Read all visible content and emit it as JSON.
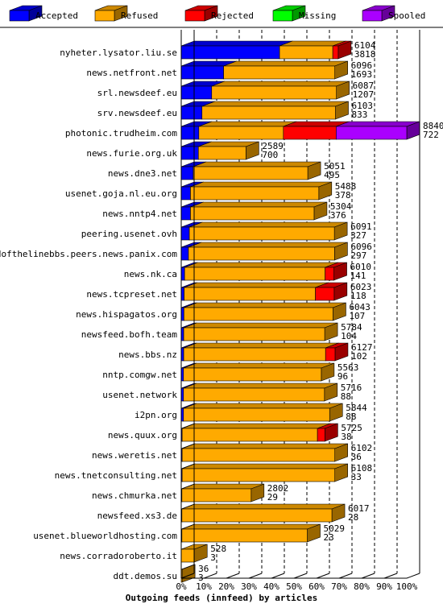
{
  "chart_data": {
    "type": "bar",
    "orientation": "horizontal",
    "stacked": true,
    "xlabel": "Outgoing feeds (innfeed) by articles",
    "xlim": [
      0,
      100
    ],
    "x_ticks": [
      "0%",
      "10%",
      "20%",
      "30%",
      "40%",
      "50%",
      "60%",
      "70%",
      "80%",
      "90%",
      "100%"
    ],
    "grid": "vertical-dashed",
    "legend_position": "top",
    "series": [
      {
        "name": "Accepted",
        "color": "#0000ff"
      },
      {
        "name": "Refused",
        "color": "#ffaa00"
      },
      {
        "name": "Rejected",
        "color": "#ff0000"
      },
      {
        "name": "Missing",
        "color": "#00ff00"
      },
      {
        "name": "Spooled",
        "color": "#aa00ff"
      }
    ],
    "rows": [
      {
        "site": "nyheter.lysator.liu.se",
        "offered": "6104",
        "accepted": "3818",
        "pct": [
          43.6,
          23.6,
          2.4,
          0,
          0
        ]
      },
      {
        "site": "news.netfront.net",
        "offered": "6096",
        "accepted": "1693",
        "pct": [
          18.8,
          49.3,
          0,
          0,
          0
        ]
      },
      {
        "site": "srl.newsdeef.eu",
        "offered": "6087",
        "accepted": "1207",
        "pct": [
          13.5,
          55.3,
          0,
          0,
          0
        ]
      },
      {
        "site": "srv.newsdeef.eu",
        "offered": "6103",
        "accepted": "833",
        "pct": [
          9.2,
          59.2,
          0,
          0,
          0
        ]
      },
      {
        "site": "photonic.trudheim.com",
        "offered": "8840",
        "accepted": "722",
        "pct": [
          7.8,
          37.5,
          23.4,
          0,
          31.3
        ]
      },
      {
        "site": "news.furie.org.uk",
        "offered": "2589",
        "accepted": "700",
        "pct": [
          7.6,
          21.1,
          0,
          0,
          0
        ]
      },
      {
        "site": "news.dne3.net",
        "offered": "5051",
        "accepted": "495",
        "pct": [
          5.3,
          50.8,
          0,
          0,
          0
        ]
      },
      {
        "site": "usenet.goja.nl.eu.org",
        "offered": "5488",
        "accepted": "378",
        "pct": [
          4.1,
          56.9,
          0,
          0,
          0
        ]
      },
      {
        "site": "news.nntp4.net",
        "offered": "5304",
        "accepted": "376",
        "pct": [
          4.1,
          54.8,
          0,
          0,
          0
        ]
      },
      {
        "site": "peering.usenet.ovh",
        "offered": "6091",
        "accepted": "327",
        "pct": [
          3.6,
          64.3,
          0,
          0,
          0
        ]
      },
      {
        "site": "endofthelinebbs.peers.news.panix.com",
        "offered": "6096",
        "accepted": "297",
        "pct": [
          3.2,
          64.8,
          0,
          0,
          0
        ]
      },
      {
        "site": "news.nk.ca",
        "offered": "6010",
        "accepted": "141",
        "pct": [
          1.5,
          62.3,
          3.9,
          0,
          0
        ]
      },
      {
        "site": "news.tcpreset.net",
        "offered": "6023",
        "accepted": "118",
        "pct": [
          1.3,
          58.2,
          8.3,
          0,
          0
        ]
      },
      {
        "site": "news.hispagatos.org",
        "offered": "6043",
        "accepted": "107",
        "pct": [
          1.2,
          66.1,
          0,
          0,
          0
        ]
      },
      {
        "site": "newsfeed.bofh.team",
        "offered": "5784",
        "accepted": "104",
        "pct": [
          1.1,
          62.5,
          0,
          0,
          0
        ]
      },
      {
        "site": "news.bbs.nz",
        "offered": "6127",
        "accepted": "102",
        "pct": [
          1.1,
          62.9,
          4.2,
          0,
          0
        ]
      },
      {
        "site": "nntp.comgw.net",
        "offered": "5563",
        "accepted": "96",
        "pct": [
          1.0,
          61.1,
          0,
          0,
          0
        ]
      },
      {
        "site": "usenet.network",
        "offered": "5716",
        "accepted": "88",
        "pct": [
          1.0,
          62.5,
          0,
          0,
          0
        ]
      },
      {
        "site": "i2pn.org",
        "offered": "5844",
        "accepted": "88",
        "pct": [
          1.0,
          64.8,
          0,
          0,
          0
        ]
      },
      {
        "site": "news.quux.org",
        "offered": "5725",
        "accepted": "38",
        "pct": [
          0.4,
          60.0,
          3.3,
          0,
          0
        ]
      },
      {
        "site": "news.weretis.net",
        "offered": "6102",
        "accepted": "36",
        "pct": [
          0.4,
          67.7,
          0,
          0,
          0
        ]
      },
      {
        "site": "news.tnetconsulting.net",
        "offered": "6108",
        "accepted": "33",
        "pct": [
          0.4,
          67.7,
          0,
          0,
          0
        ]
      },
      {
        "site": "news.chmurka.net",
        "offered": "2802",
        "accepted": "29",
        "pct": [
          0.3,
          30.7,
          0,
          0,
          0
        ]
      },
      {
        "site": "newsfeed.xs3.de",
        "offered": "6017",
        "accepted": "28",
        "pct": [
          0.3,
          66.5,
          0,
          0,
          0
        ]
      },
      {
        "site": "usenet.blueworldhosting.com",
        "offered": "5029",
        "accepted": "23",
        "pct": [
          0.3,
          55.6,
          0,
          0,
          0
        ]
      },
      {
        "site": "news.corradoroberto.it",
        "offered": "528",
        "accepted": "3",
        "pct": [
          0.0,
          5.8,
          0,
          0,
          0
        ]
      },
      {
        "site": "ddt.demos.su",
        "offered": "36",
        "accepted": "3",
        "pct": [
          0.0,
          0.4,
          0,
          0,
          0
        ]
      }
    ]
  }
}
